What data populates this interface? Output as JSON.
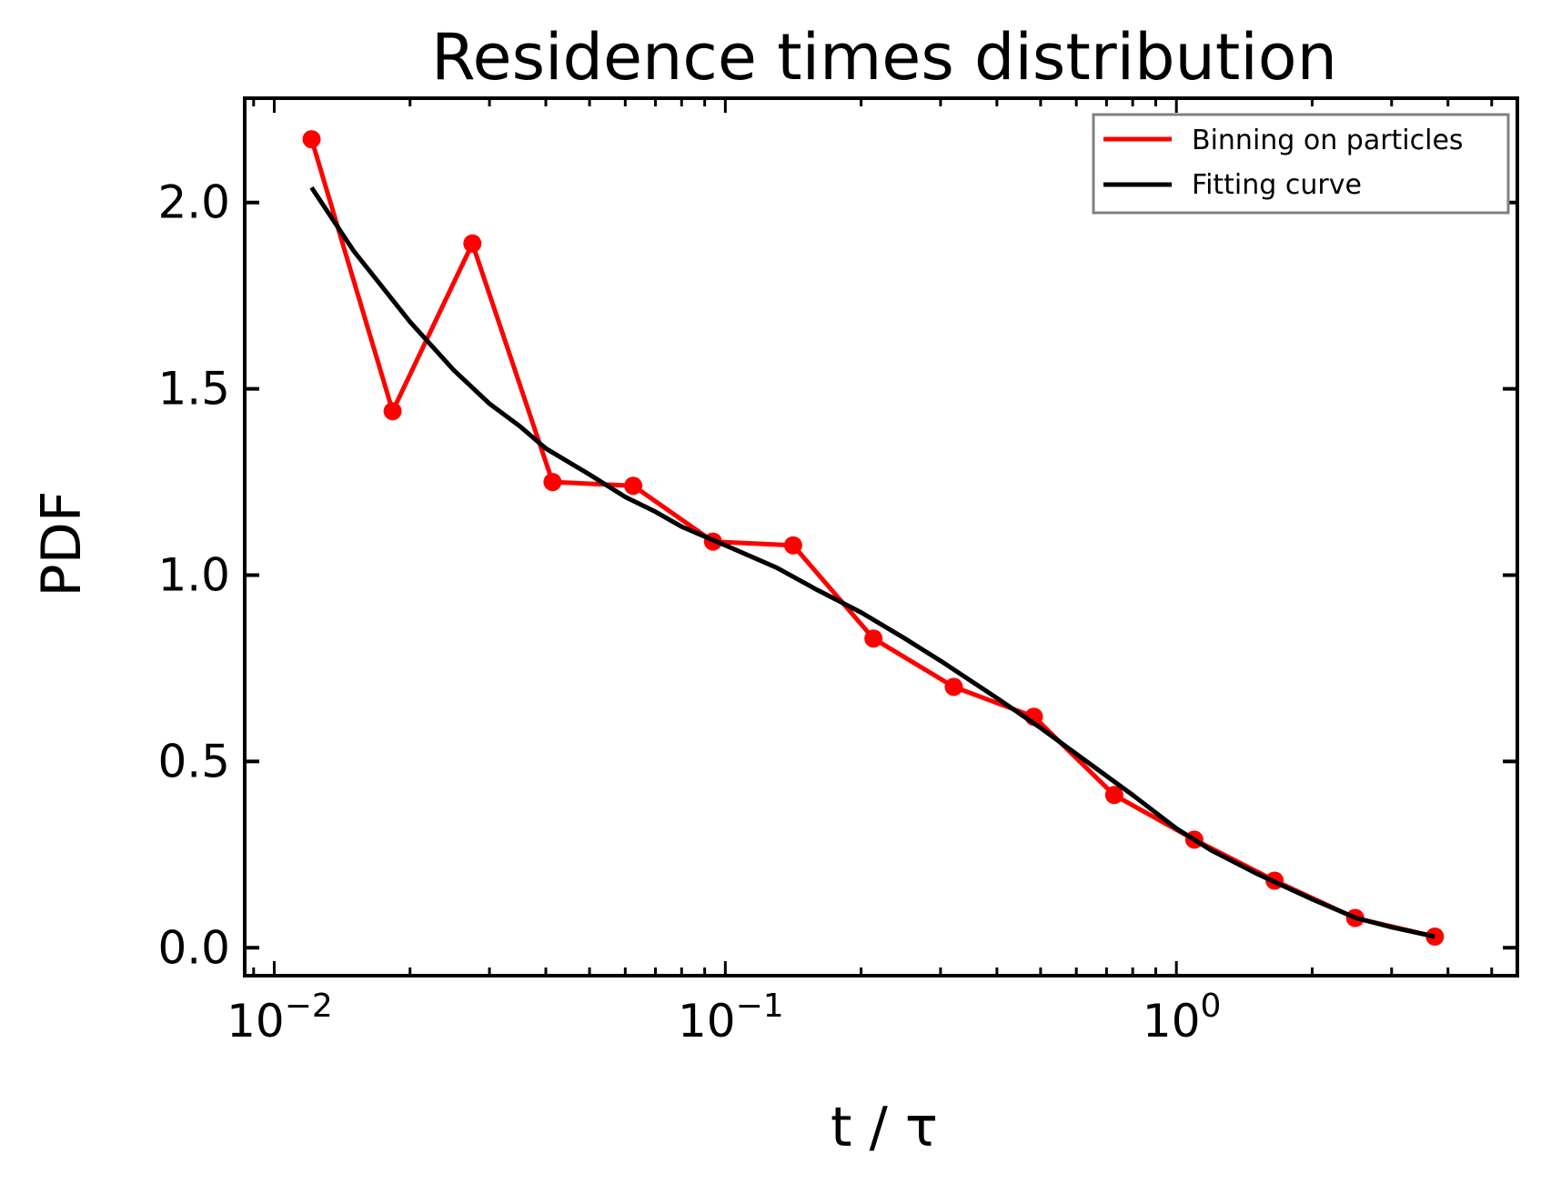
{
  "chart_data": {
    "type": "line",
    "title": "Residence times distribution",
    "xlabel": "t / τ",
    "ylabel": "PDF",
    "x_scale": "log",
    "xlim": [
      0.0086,
      5.7
    ],
    "ylim": [
      -0.075,
      2.28
    ],
    "x_ticks": [
      {
        "value": 0.01,
        "base": "10",
        "exp": "−2"
      },
      {
        "value": 0.1,
        "base": "10",
        "exp": "−1"
      },
      {
        "value": 1,
        "base": "10",
        "exp": "0"
      }
    ],
    "y_ticks": [
      {
        "value": 0.0,
        "label": "0.0"
      },
      {
        "value": 0.5,
        "label": "0.5"
      },
      {
        "value": 1.0,
        "label": "1.0"
      },
      {
        "value": 1.5,
        "label": "1.5"
      },
      {
        "value": 2.0,
        "label": "2.0"
      }
    ],
    "grid": false,
    "legend": "top-right",
    "series": [
      {
        "name": "Binning on particles",
        "color": "#ff0000",
        "marker": "circle",
        "x": [
          0.0121,
          0.0183,
          0.0275,
          0.0414,
          0.0625,
          0.0939,
          0.1414,
          0.213,
          0.321,
          0.483,
          0.728,
          1.096,
          1.651,
          2.49,
          3.74
        ],
        "y": [
          2.17,
          1.44,
          1.89,
          1.25,
          1.24,
          1.09,
          1.08,
          0.83,
          0.7,
          0.62,
          0.41,
          0.29,
          0.18,
          0.08,
          0.03
        ]
      },
      {
        "name": "Fitting curve",
        "color": "#000000",
        "marker": "none",
        "x": [
          0.0121,
          0.015,
          0.02,
          0.025,
          0.03,
          0.035,
          0.04,
          0.05,
          0.06,
          0.07,
          0.08,
          0.1,
          0.13,
          0.16,
          0.2,
          0.25,
          0.3,
          0.4,
          0.5,
          0.6,
          0.8,
          1.0,
          1.2,
          1.5,
          2.0,
          2.5,
          3.0,
          3.74
        ],
        "y": [
          2.04,
          1.87,
          1.68,
          1.55,
          1.46,
          1.4,
          1.34,
          1.27,
          1.21,
          1.17,
          1.13,
          1.08,
          1.02,
          0.96,
          0.9,
          0.83,
          0.77,
          0.67,
          0.59,
          0.52,
          0.41,
          0.32,
          0.26,
          0.2,
          0.13,
          0.08,
          0.055,
          0.03
        ]
      }
    ]
  }
}
